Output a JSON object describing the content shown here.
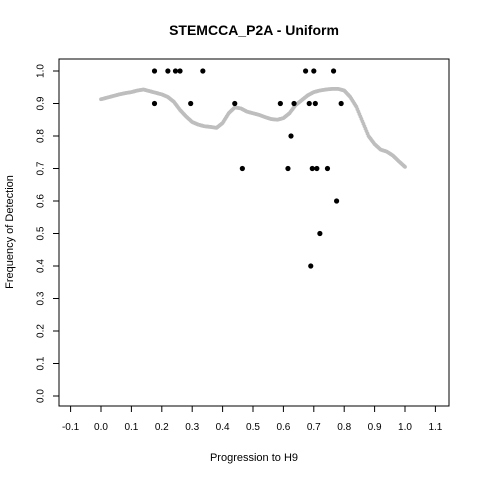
{
  "chart_data": {
    "type": "scatter",
    "title": "STEMCCA_P2A - Uniform",
    "xlabel": "Progression to H9",
    "ylabel": "Frequency of Detection",
    "xlim": [
      -0.1,
      1.1
    ],
    "ylim": [
      0.0,
      1.0
    ],
    "xticks": [
      "-0.1",
      "0.0",
      "0.1",
      "0.2",
      "0.3",
      "0.4",
      "0.5",
      "0.6",
      "0.7",
      "0.8",
      "0.9",
      "1.0",
      "1.1"
    ],
    "xtick_values": [
      -0.1,
      0.0,
      0.1,
      0.2,
      0.3,
      0.4,
      0.5,
      0.6,
      0.7,
      0.8,
      0.9,
      1.0,
      1.1
    ],
    "yticks": [
      "0.0",
      "0.1",
      "0.2",
      "0.3",
      "0.4",
      "0.5",
      "0.6",
      "0.7",
      "0.8",
      "0.9",
      "1.0"
    ],
    "ytick_values": [
      0.0,
      0.1,
      0.2,
      0.3,
      0.4,
      0.5,
      0.6,
      0.7,
      0.8,
      0.9,
      1.0
    ],
    "grid": false,
    "series": [
      {
        "role": "smoothed curve",
        "color": "#bebebe",
        "points": [
          [
            0.0,
            0.913
          ],
          [
            0.02,
            0.918
          ],
          [
            0.04,
            0.923
          ],
          [
            0.06,
            0.928
          ],
          [
            0.08,
            0.932
          ],
          [
            0.1,
            0.935
          ],
          [
            0.12,
            0.94
          ],
          [
            0.14,
            0.943
          ],
          [
            0.16,
            0.938
          ],
          [
            0.18,
            0.933
          ],
          [
            0.2,
            0.928
          ],
          [
            0.22,
            0.92
          ],
          [
            0.24,
            0.905
          ],
          [
            0.26,
            0.88
          ],
          [
            0.28,
            0.86
          ],
          [
            0.3,
            0.843
          ],
          [
            0.32,
            0.835
          ],
          [
            0.34,
            0.83
          ],
          [
            0.36,
            0.828
          ],
          [
            0.38,
            0.825
          ],
          [
            0.4,
            0.84
          ],
          [
            0.42,
            0.87
          ],
          [
            0.44,
            0.888
          ],
          [
            0.46,
            0.885
          ],
          [
            0.48,
            0.875
          ],
          [
            0.5,
            0.87
          ],
          [
            0.52,
            0.865
          ],
          [
            0.54,
            0.858
          ],
          [
            0.56,
            0.852
          ],
          [
            0.58,
            0.85
          ],
          [
            0.6,
            0.855
          ],
          [
            0.62,
            0.87
          ],
          [
            0.64,
            0.895
          ],
          [
            0.66,
            0.91
          ],
          [
            0.68,
            0.925
          ],
          [
            0.7,
            0.935
          ],
          [
            0.72,
            0.94
          ],
          [
            0.74,
            0.943
          ],
          [
            0.76,
            0.945
          ],
          [
            0.78,
            0.945
          ],
          [
            0.8,
            0.94
          ],
          [
            0.82,
            0.92
          ],
          [
            0.84,
            0.89
          ],
          [
            0.86,
            0.845
          ],
          [
            0.88,
            0.8
          ],
          [
            0.9,
            0.775
          ],
          [
            0.92,
            0.758
          ],
          [
            0.94,
            0.752
          ],
          [
            0.96,
            0.74
          ],
          [
            0.98,
            0.722
          ],
          [
            1.0,
            0.705
          ]
        ]
      },
      {
        "role": "observed points",
        "color": "#000000",
        "points": [
          [
            0.176,
            1.0
          ],
          [
            0.176,
            0.9
          ],
          [
            0.22,
            1.0
          ],
          [
            0.245,
            1.0
          ],
          [
            0.26,
            1.0
          ],
          [
            0.295,
            0.9
          ],
          [
            0.335,
            1.0
          ],
          [
            0.44,
            0.9
          ],
          [
            0.465,
            0.7
          ],
          [
            0.59,
            0.9
          ],
          [
            0.615,
            0.7
          ],
          [
            0.625,
            0.8
          ],
          [
            0.635,
            0.9
          ],
          [
            0.673,
            1.0
          ],
          [
            0.685,
            0.9
          ],
          [
            0.69,
            0.4
          ],
          [
            0.695,
            0.7
          ],
          [
            0.7,
            1.0
          ],
          [
            0.705,
            0.9
          ],
          [
            0.71,
            0.7
          ],
          [
            0.72,
            0.5
          ],
          [
            0.745,
            0.7
          ],
          [
            0.765,
            1.0
          ],
          [
            0.775,
            0.6
          ],
          [
            0.79,
            0.9
          ]
        ]
      }
    ]
  }
}
